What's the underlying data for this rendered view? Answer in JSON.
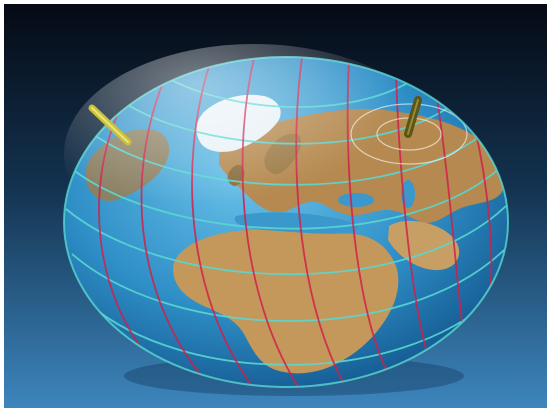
{
  "scene": {
    "subject": "globe-ellipsoid",
    "background_top_color": "#050a14",
    "background_bottom_color": "#3d86bd",
    "ocean_color": "#2f8fc7",
    "land_color": "#b5894f",
    "ice_color": "#e9f2f7",
    "meridian_color": "#d1204a",
    "parallel_color": "#58d8d2",
    "axis_rod_color": "#c9c23a",
    "focus_rod_color": "#5d5418"
  }
}
